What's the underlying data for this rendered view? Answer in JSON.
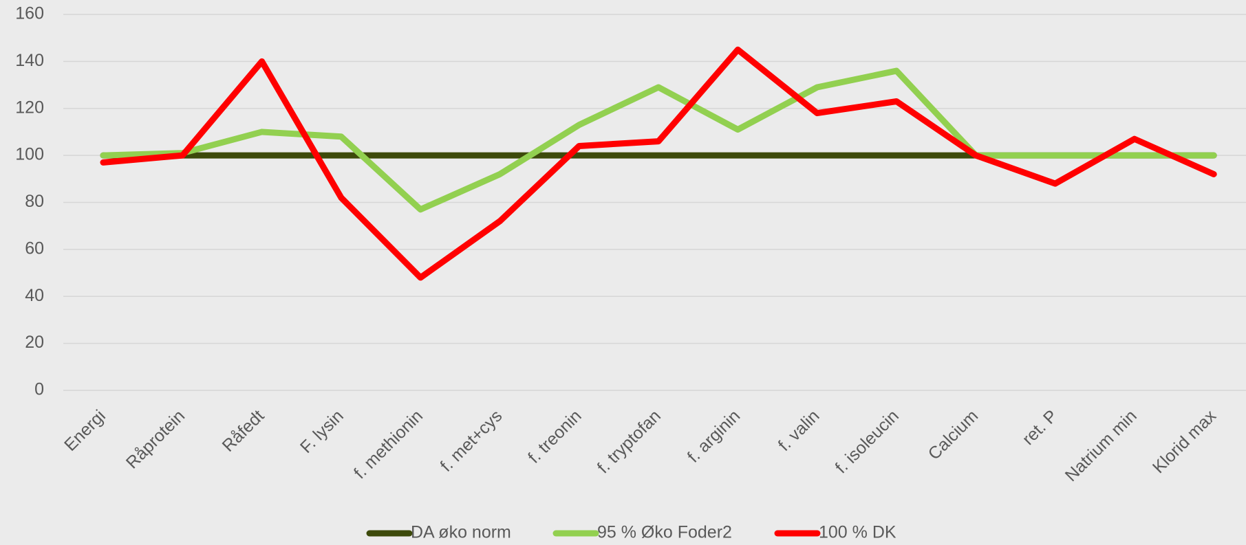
{
  "chart_data": {
    "type": "line",
    "categories": [
      "Energi",
      "Råprotein",
      "Råfedt",
      "F. lysin",
      "f. methionin",
      "f. met+cys",
      "f. treonin",
      "f. tryptofan",
      "f. arginin",
      "f. valin",
      "f. isoleucin",
      "Calcium",
      "ret. P",
      "Natrium min",
      "Klorid max"
    ],
    "series": [
      {
        "name": "DA øko norm",
        "color": "#3d4a0b",
        "values": [
          100,
          100,
          100,
          100,
          100,
          100,
          100,
          100,
          100,
          100,
          100,
          100,
          100,
          100,
          100
        ]
      },
      {
        "name": "95 % Øko Foder2",
        "color": "#92d050",
        "values": [
          100,
          101,
          110,
          108,
          77,
          92,
          113,
          129,
          111,
          129,
          136,
          100,
          100,
          100,
          100
        ]
      },
      {
        "name": "100 % DK",
        "color": "#ff0000",
        "values": [
          97,
          100,
          140,
          82,
          48,
          72,
          104,
          106,
          145,
          118,
          123,
          100,
          88,
          107,
          92
        ]
      }
    ],
    "ylim": [
      0,
      160
    ],
    "yticks": [
      0,
      20,
      40,
      60,
      80,
      100,
      120,
      140,
      160
    ],
    "grid": true,
    "legend": "bottom"
  }
}
